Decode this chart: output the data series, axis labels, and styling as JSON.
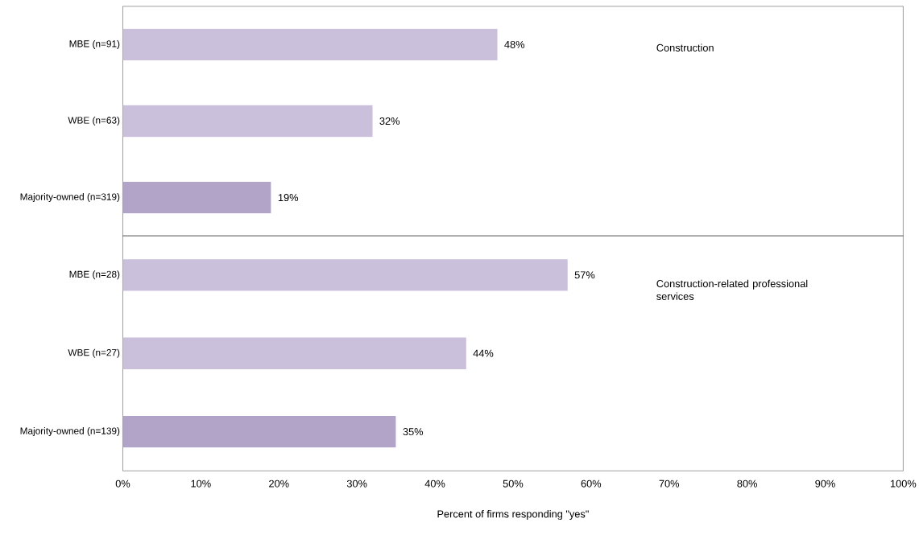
{
  "chart_data": [
    {
      "type": "bar",
      "orientation": "horizontal",
      "categories": [
        "MBE (n=91)",
        "WBE (n=63)",
        "Majority-owned (n=319)"
      ],
      "values": [
        48,
        32,
        19
      ],
      "colors": [
        "#cbc0dc",
        "#cbc0dc",
        "#b2a3c8"
      ],
      "value_labels": [
        "48%",
        "32%",
        "19%"
      ],
      "xlim": [
        0,
        100
      ],
      "tick_labels": "y",
      "annotations": [
        "Construction"
      ]
    },
    {
      "type": "bar",
      "orientation": "horizontal",
      "categories": [
        "MBE (n=28)",
        "WBE (n=27)",
        "Majority-owned (n=139)"
      ],
      "values": [
        57,
        44,
        35
      ],
      "colors": [
        "#cbc0dc",
        "#cbc0dc",
        "#b2a3c8"
      ],
      "value_labels": [
        "57%",
        "44%",
        "35%"
      ],
      "xlim": [
        0,
        100
      ],
      "xticks": [
        {
          "value": 0,
          "label": "0%"
        },
        {
          "value": 10,
          "label": "10%"
        },
        {
          "value": 20,
          "label": "20%"
        },
        {
          "value": 30,
          "label": "30%"
        },
        {
          "value": 40,
          "label": "40%"
        },
        {
          "value": 50,
          "label": "50%"
        },
        {
          "value": 60,
          "label": "60%"
        },
        {
          "value": 70,
          "label": "70%"
        },
        {
          "value": 80,
          "label": "80%"
        },
        {
          "value": 90,
          "label": "90%"
        },
        {
          "value": 100,
          "label": "100%"
        }
      ],
      "xlabel": "Percent of firms responding \"yes\"",
      "annotations": [
        "Construction-related professional services"
      ]
    }
  ]
}
